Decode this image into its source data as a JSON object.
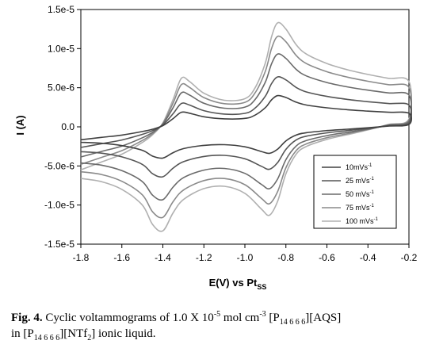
{
  "chart_data": {
    "type": "line",
    "title": "",
    "xlabel": "E(V) vs Pt",
    "xlabel_sub": "SS",
    "ylabel": "I (A)",
    "xlim": [
      -1.8,
      -0.2
    ],
    "ylim": [
      -1.5e-05,
      1.5e-05
    ],
    "xticks": [
      -1.8,
      -1.6,
      -1.4,
      -1.2,
      -1.0,
      -0.8,
      -0.6,
      -0.4,
      -0.2
    ],
    "xtick_labels": [
      "-1.8",
      "-1.6",
      "-1.4",
      "-1.2",
      "-1.0",
      "-0.8",
      "-0.6",
      "-0.4",
      "-0.2"
    ],
    "yticks": [
      -1.5e-05,
      -1e-05,
      -5e-06,
      0,
      5e-06,
      1e-05,
      1.5e-05
    ],
    "ytick_labels": [
      "-1.5e-5",
      "-1.0e-5",
      "-5.0e-6",
      "0.0",
      "5.0e-6",
      "1.0e-5",
      "1.5e-5"
    ],
    "grid": false,
    "legend_position": "bottom-right",
    "series": [
      {
        "name": "10mVs",
        "name_sup": "-1",
        "color": "#404040",
        "scale": 0.3
      },
      {
        "name": "25 mVs",
        "name_sup": "-1",
        "color": "#555555",
        "scale": 0.48
      },
      {
        "name": "50 mVs",
        "name_sup": "-1",
        "color": "#6a6a6a",
        "scale": 0.7
      },
      {
        "name": "75 mVs",
        "name_sup": "-1",
        "color": "#8a8a8a",
        "scale": 0.87
      },
      {
        "name": "100 mVs",
        "name_sup": "-1",
        "color": "#b0b0b0",
        "scale": 1.0
      }
    ],
    "reference_cycle_100mVs": {
      "forward_scan": {
        "x": [
          -1.8,
          -1.7,
          -1.6,
          -1.5,
          -1.45,
          -1.4,
          -1.35,
          -1.31,
          -1.27,
          -1.2,
          -1.1,
          -1.0,
          -0.95,
          -0.9,
          -0.87,
          -0.84,
          -0.8,
          -0.75,
          -0.7,
          -0.6,
          -0.5,
          -0.4,
          -0.3,
          -0.2
        ],
        "y": [
          -5.5e-06,
          -4.5e-06,
          -3.5e-06,
          -2e-06,
          -1e-06,
          5e-07,
          3.5e-06,
          6.2e-06,
          5.8e-06,
          4.3e-06,
          3.4e-06,
          3.6e-06,
          5e-06,
          8.2e-06,
          1.15e-05,
          1.33e-05,
          1.25e-05,
          1.05e-05,
          9.3e-06,
          8.1e-06,
          7.3e-06,
          6.7e-06,
          6.2e-06,
          5.8e-06
        ]
      },
      "reverse_scan": {
        "x": [
          -0.2,
          -0.3,
          -0.4,
          -0.5,
          -0.6,
          -0.7,
          -0.75,
          -0.8,
          -0.84,
          -0.88,
          -0.92,
          -1.0,
          -1.1,
          -1.2,
          -1.3,
          -1.35,
          -1.4,
          -1.45,
          -1.5,
          -1.6,
          -1.7,
          -1.8
        ],
        "y": [
          1e-06,
          3e-07,
          -4e-07,
          -1e-06,
          -1.6e-06,
          -2.5e-06,
          -3.5e-06,
          -6e-06,
          -9.5e-06,
          -1.13e-05,
          -1.05e-05,
          -8.5e-06,
          -7.6e-06,
          -7.9e-06,
          -9.3e-06,
          -1.1e-05,
          -1.33e-05,
          -1.25e-05,
          -1e-05,
          -8e-06,
          -7e-06,
          -6.6e-06
        ]
      }
    }
  },
  "caption": {
    "label": "Fig. 4.",
    "text_1": " Cyclic voltammograms of 1.0 X 10",
    "sup_1": "-5",
    "text_2": " mol cm",
    "sup_2": "-3",
    "text_3": " [P",
    "sub_1": "14 6 6 6",
    "text_4": "][AQS]",
    "text_5": "in [P",
    "sub_2": "14 6 6 6",
    "text_6": "][NTf",
    "sub_3": "2",
    "text_7": "] ionic liquid."
  }
}
